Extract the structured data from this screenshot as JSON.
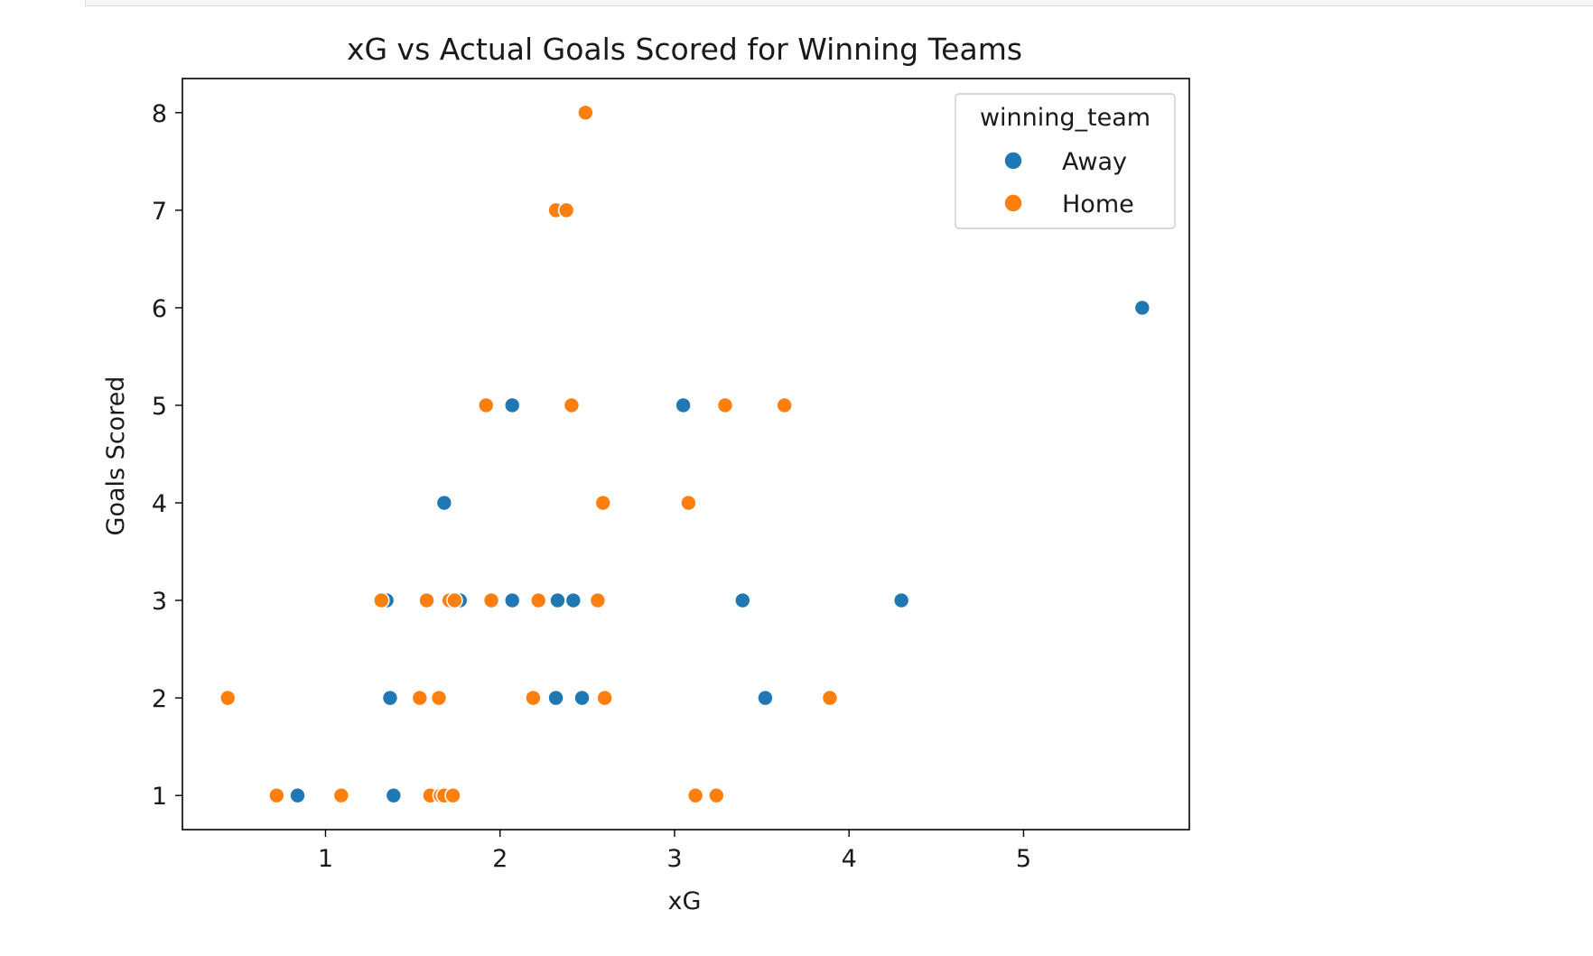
{
  "chart_data": {
    "type": "scatter",
    "title": "xG vs Actual Goals Scored for Winning Teams",
    "xlabel": "xG",
    "ylabel": "Goals Scored",
    "xlim": [
      0.18,
      5.95
    ],
    "ylim": [
      0.65,
      8.35
    ],
    "xticks": [
      1,
      2,
      3,
      4,
      5
    ],
    "yticks": [
      1,
      2,
      3,
      4,
      5,
      6,
      7,
      8
    ],
    "grid": false,
    "legend": {
      "title": "winning_team",
      "placement": "upper right"
    },
    "series": [
      {
        "name": "Away",
        "color": "#1f77b4",
        "points": [
          {
            "x": 5.68,
            "y": 6
          },
          {
            "x": 2.07,
            "y": 5
          },
          {
            "x": 3.05,
            "y": 5
          },
          {
            "x": 1.68,
            "y": 4
          },
          {
            "x": 1.35,
            "y": 3
          },
          {
            "x": 1.77,
            "y": 3
          },
          {
            "x": 2.07,
            "y": 3
          },
          {
            "x": 2.33,
            "y": 3
          },
          {
            "x": 2.42,
            "y": 3
          },
          {
            "x": 3.39,
            "y": 3
          },
          {
            "x": 4.3,
            "y": 3
          },
          {
            "x": 1.37,
            "y": 2
          },
          {
            "x": 2.32,
            "y": 2
          },
          {
            "x": 2.47,
            "y": 2
          },
          {
            "x": 3.52,
            "y": 2
          },
          {
            "x": 0.84,
            "y": 1
          },
          {
            "x": 1.39,
            "y": 1
          }
        ]
      },
      {
        "name": "Home",
        "color": "#ff7f0e",
        "points": [
          {
            "x": 2.49,
            "y": 8
          },
          {
            "x": 2.32,
            "y": 7
          },
          {
            "x": 2.38,
            "y": 7
          },
          {
            "x": 1.92,
            "y": 5
          },
          {
            "x": 2.41,
            "y": 5
          },
          {
            "x": 3.29,
            "y": 5
          },
          {
            "x": 3.63,
            "y": 5
          },
          {
            "x": 2.59,
            "y": 4
          },
          {
            "x": 3.08,
            "y": 4
          },
          {
            "x": 1.32,
            "y": 3
          },
          {
            "x": 1.58,
            "y": 3
          },
          {
            "x": 1.71,
            "y": 3
          },
          {
            "x": 1.74,
            "y": 3
          },
          {
            "x": 1.95,
            "y": 3
          },
          {
            "x": 2.22,
            "y": 3
          },
          {
            "x": 2.56,
            "y": 3
          },
          {
            "x": 0.44,
            "y": 2
          },
          {
            "x": 1.54,
            "y": 2
          },
          {
            "x": 1.65,
            "y": 2
          },
          {
            "x": 2.19,
            "y": 2
          },
          {
            "x": 2.6,
            "y": 2
          },
          {
            "x": 3.89,
            "y": 2
          },
          {
            "x": 0.72,
            "y": 1
          },
          {
            "x": 1.09,
            "y": 1
          },
          {
            "x": 1.6,
            "y": 1
          },
          {
            "x": 1.66,
            "y": 1
          },
          {
            "x": 1.68,
            "y": 1
          },
          {
            "x": 1.73,
            "y": 1
          },
          {
            "x": 3.12,
            "y": 1
          },
          {
            "x": 3.24,
            "y": 1
          }
        ]
      }
    ]
  }
}
